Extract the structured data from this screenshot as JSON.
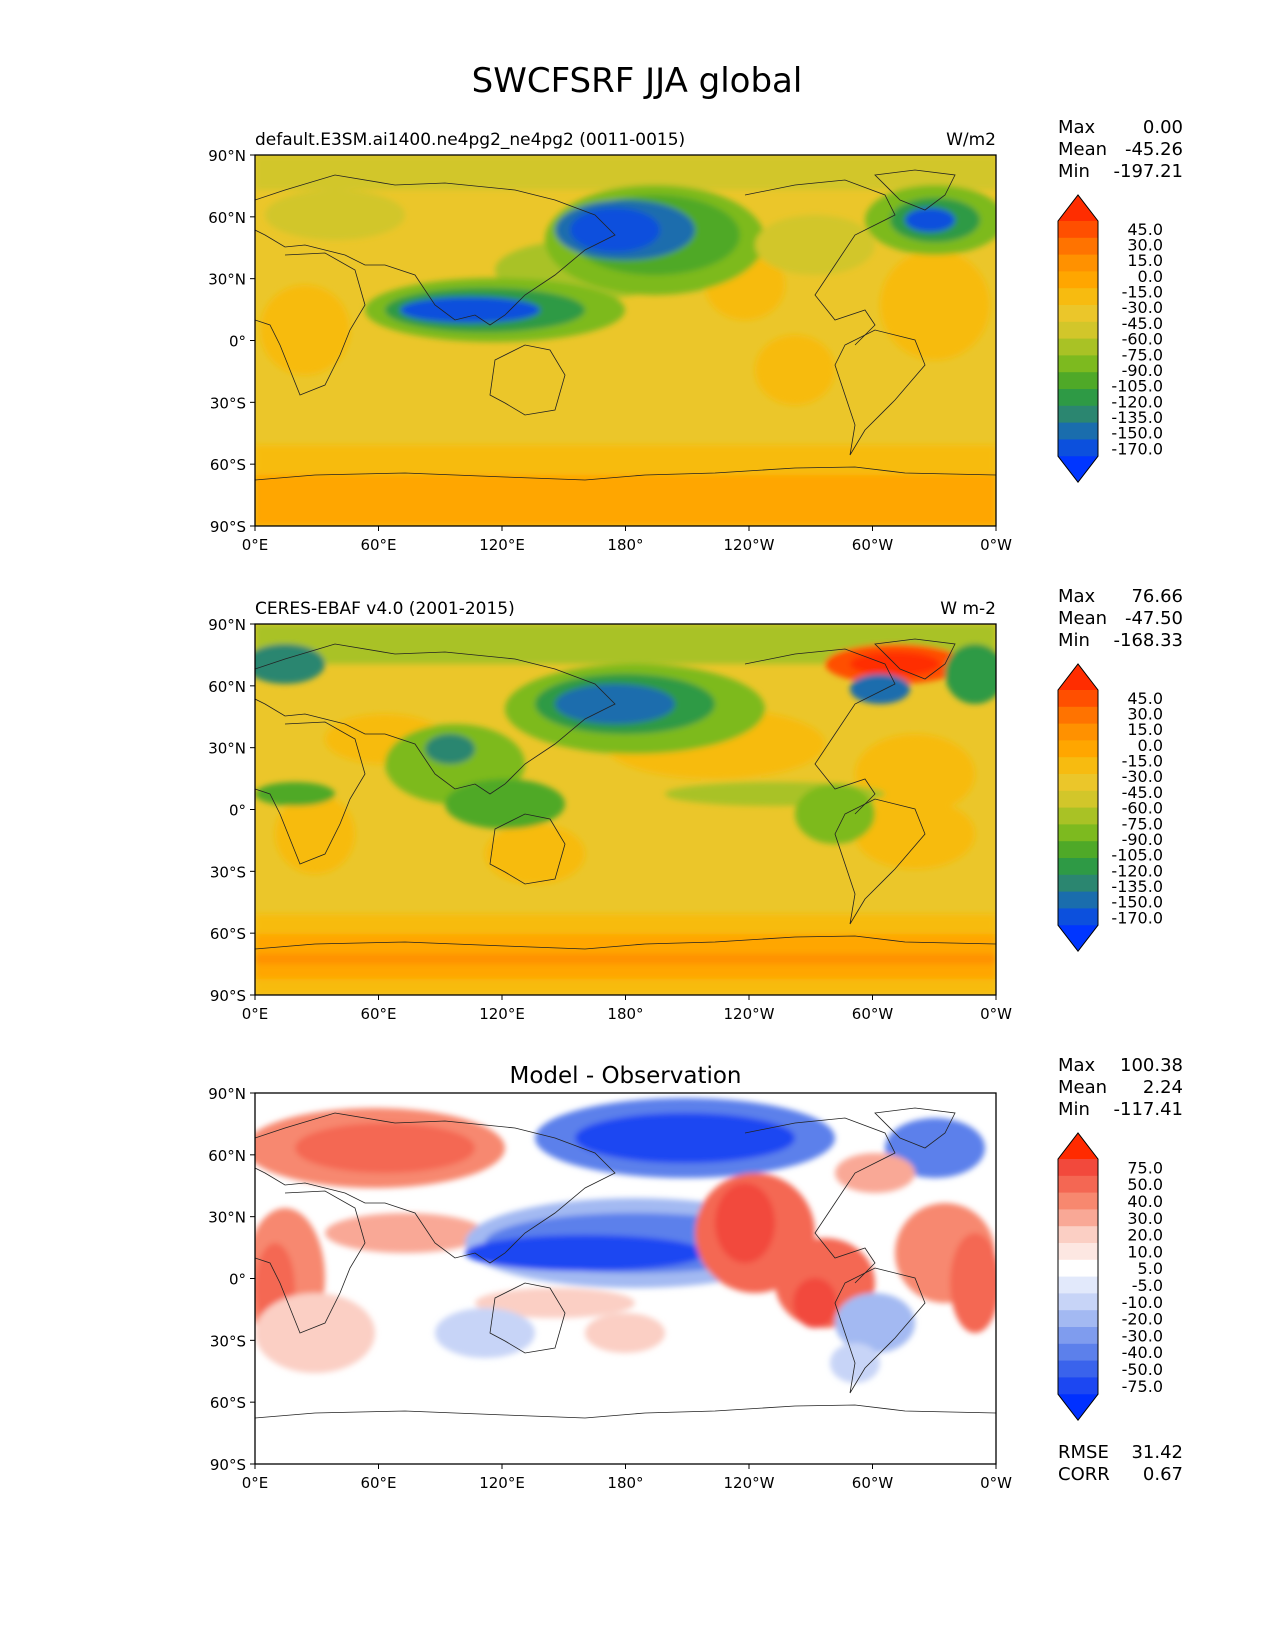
{
  "title": "SWCFSRF JJA global",
  "panels": [
    {
      "id": "model",
      "left_title": "default.E3SM.ai1400.ne4pg2_ne4pg2 (0011-0015)",
      "center_title": "",
      "units": "W/m2",
      "stats": [
        [
          "Max",
          "0.00"
        ],
        [
          "Mean",
          "-45.26"
        ],
        [
          "Min",
          "-197.21"
        ]
      ],
      "colorbar": {
        "colors": [
          "#ff2d00",
          "#ff4f00",
          "#ff7300",
          "#ff9100",
          "#ffa600",
          "#f7bb10",
          "#ebc62a",
          "#d2c62a",
          "#a9c225",
          "#7dba1f",
          "#4fa928",
          "#2e9a45",
          "#2b8670",
          "#1a6dad",
          "#0c50dd",
          "#0036ff"
        ],
        "labels": [
          "45.0",
          "30.0",
          "15.0",
          "0.0",
          "-15.0",
          "-30.0",
          "-45.0",
          "-60.0",
          "-75.0",
          "-90.0",
          "-105.0",
          "-120.0",
          "-135.0",
          "-150.0",
          "-170.0"
        ]
      }
    },
    {
      "id": "obs",
      "left_title": "CERES-EBAF v4.0 (2001-2015)",
      "center_title": "",
      "units": "W m-2",
      "stats": [
        [
          "Max",
          "76.66"
        ],
        [
          "Mean",
          "-47.50"
        ],
        [
          "Min",
          "-168.33"
        ]
      ],
      "colorbar": {
        "colors": [
          "#ff2d00",
          "#ff4f00",
          "#ff7300",
          "#ff9100",
          "#ffa600",
          "#f7bb10",
          "#ebc62a",
          "#d2c62a",
          "#a9c225",
          "#7dba1f",
          "#4fa928",
          "#2e9a45",
          "#2b8670",
          "#1a6dad",
          "#0c50dd",
          "#0036ff"
        ],
        "labels": [
          "45.0",
          "30.0",
          "15.0",
          "0.0",
          "-15.0",
          "-30.0",
          "-45.0",
          "-60.0",
          "-75.0",
          "-90.0",
          "-105.0",
          "-120.0",
          "-135.0",
          "-150.0",
          "-170.0"
        ]
      }
    },
    {
      "id": "diff",
      "left_title": "",
      "center_title": "Model - Observation",
      "units": "",
      "stats": [
        [
          "Max",
          "100.38"
        ],
        [
          "Mean",
          "2.24"
        ],
        [
          "Min",
          "-117.41"
        ]
      ],
      "extra_stats": [
        [
          "RMSE",
          "31.42"
        ],
        [
          "CORR",
          "0.67"
        ]
      ],
      "colorbar": {
        "colors": [
          "#ff2a00",
          "#f2493c",
          "#f46753",
          "#f7886f",
          "#f9a896",
          "#fbcfc4",
          "#fde7e2",
          "#ffffff",
          "#e2e9fb",
          "#c7d4f7",
          "#a3b9f2",
          "#7f9cee",
          "#5c80eb",
          "#3a63ec",
          "#1c47f2",
          "#0030ff"
        ],
        "labels": [
          "75.0",
          "50.0",
          "40.0",
          "30.0",
          "20.0",
          "10.0",
          "5.0",
          "-5.0",
          "-10.0",
          "-20.0",
          "-30.0",
          "-40.0",
          "-50.0",
          "-75.0"
        ]
      }
    }
  ],
  "axes": {
    "lat_ticks": [
      "90°N",
      "60°N",
      "30°N",
      "0°",
      "30°S",
      "60°S",
      "90°S"
    ],
    "lon_ticks": [
      "0°E",
      "60°E",
      "120°E",
      "180°",
      "120°W",
      "60°W",
      "0°W"
    ]
  }
}
